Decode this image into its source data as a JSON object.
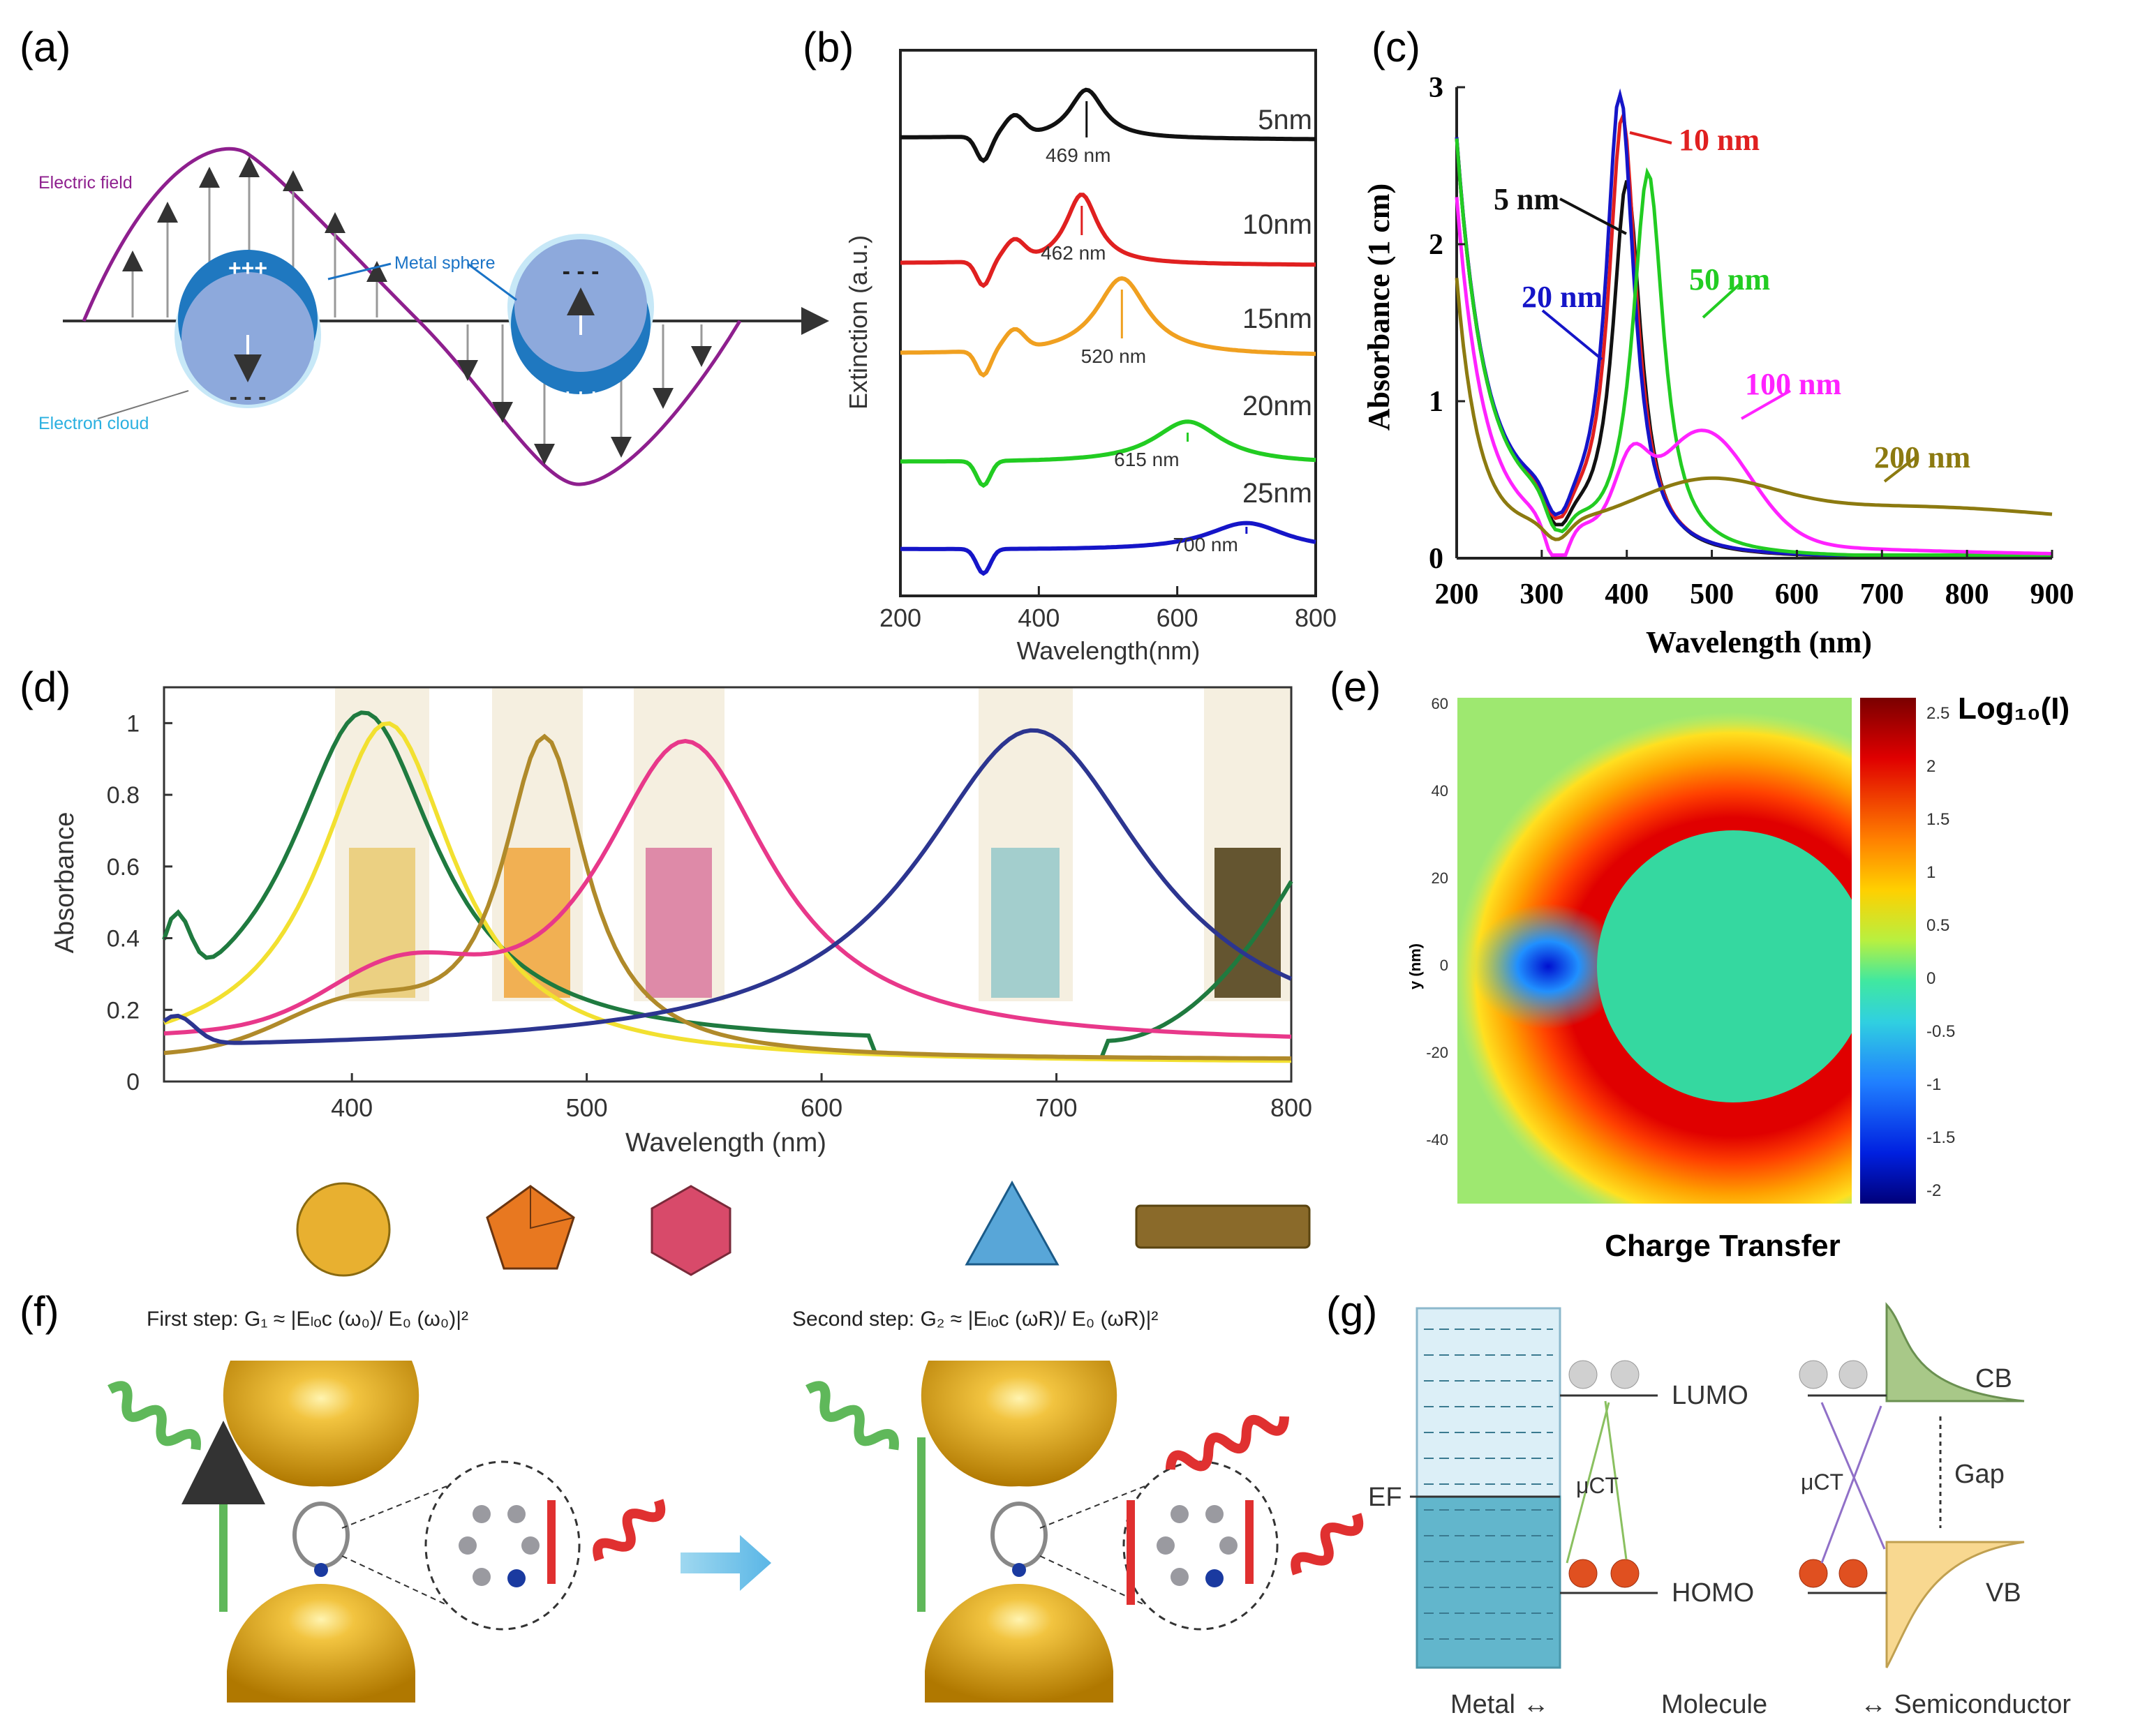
{
  "panel_labels": {
    "a": "(a)",
    "b": "(b)",
    "c": "(c)",
    "d": "(d)",
    "e": "(e)",
    "f": "(f)",
    "g": "(g)"
  },
  "panel_a": {
    "electric_field": "Electric field",
    "metal_sphere": "Metal sphere",
    "electron_cloud": "Electron cloud",
    "plus_sign": "+++",
    "minus_sign": "- - -"
  },
  "panel_f": {
    "first_step": "First step: G₁ ≈ |Eₗₒc (ω₀)/ E₀ (ω₀)|²",
    "second_step": "Second step: G₂ ≈ |Eₗₒc (ωR)/ E₀ (ωR)|²"
  },
  "panel_g": {
    "lumo": "LUMO",
    "homo": "HOMO",
    "cb": "CB",
    "vb": "VB",
    "gap": "Gap",
    "ef": "EF",
    "mu_left": "μCT",
    "mu_right": "μCT",
    "metal": "Metal ↔",
    "molecule": "Molecule",
    "semiconductor": "↔ Semiconductor"
  },
  "colors": {
    "black": "#111111",
    "red": "#e02020",
    "orange": "#f0a020",
    "green": "#22cc22",
    "blue": "#1515c8",
    "magenta": "#ff22ff",
    "olive": "#8c7a10",
    "d_green": "#1f7a3f",
    "d_yellow": "#f2e030",
    "d_tan": "#b08a2a",
    "d_pink": "#e8388a",
    "d_navy": "#2c3590"
  },
  "chart_data": [
    {
      "panel": "b",
      "type": "line",
      "xlabel": "Wavelength(nm)",
      "ylabel": "Extinction (a.u.)",
      "xlim": [
        200,
        800
      ],
      "xticks": [
        "200",
        "400",
        "600",
        "800"
      ],
      "series": [
        {
          "name": "5nm",
          "color": "#111111",
          "peak_label": "469 nm",
          "peak_x": 469
        },
        {
          "name": "10nm",
          "color": "#e02020",
          "peak_label": "462 nm",
          "peak_x": 462
        },
        {
          "name": "15nm",
          "color": "#f0a020",
          "peak_label": "520 nm",
          "peak_x": 520
        },
        {
          "name": "20nm",
          "color": "#22cc22",
          "peak_label": "615 nm",
          "peak_x": 615
        },
        {
          "name": "25nm",
          "color": "#1515c8",
          "peak_label": "700 nm",
          "peak_x": 700
        }
      ]
    },
    {
      "panel": "c",
      "type": "line",
      "xlabel": "Wavelength (nm)",
      "ylabel": "Absorbance (1 cm)",
      "xlim": [
        200,
        900
      ],
      "ylim": [
        0,
        3
      ],
      "xticks": [
        "200",
        "300",
        "400",
        "500",
        "600",
        "700",
        "800",
        "900"
      ],
      "yticks": [
        "0",
        "1",
        "2",
        "3"
      ],
      "series": [
        {
          "name": "5 nm",
          "color": "#111111",
          "peak_x": 400,
          "peak_y": 2.38
        },
        {
          "name": "10 nm",
          "color": "#e02020",
          "peak_x": 395,
          "peak_y": 2.8
        },
        {
          "name": "20 nm",
          "color": "#1515c8",
          "peak_x": 392,
          "peak_y": 2.95
        },
        {
          "name": "50 nm",
          "color": "#22cc22",
          "peak_x": 425,
          "peak_y": 2.45
        },
        {
          "name": "100 nm",
          "color": "#ff22ff",
          "peak_x": 490,
          "peak_y": 0.95
        },
        {
          "name": "200 nm",
          "color": "#8c7a10",
          "peak_x": 490,
          "peak_y": 0.43
        }
      ]
    },
    {
      "panel": "d",
      "type": "line",
      "xlabel": "Wavelength (nm)",
      "ylabel": "Absorbance",
      "xlim": [
        320,
        800
      ],
      "ylim": [
        0,
        1.1
      ],
      "xticks": [
        "400",
        "500",
        "600",
        "700",
        "800"
      ],
      "yticks": [
        "0",
        "0.2",
        "0.4",
        "0.6",
        "0.8",
        "1"
      ],
      "series": [
        {
          "color": "#1f7a3f",
          "peak_x": 405
        },
        {
          "color": "#f2e030",
          "peak_x": 415
        },
        {
          "color": "#b08a2a",
          "peak_x": 482
        },
        {
          "color": "#e8388a",
          "peak_x": 542
        },
        {
          "color": "#2c3590",
          "peak_x": 690
        }
      ]
    },
    {
      "panel": "e",
      "type": "heatmap",
      "title": "Charge Transfer",
      "ylabel": "y (nm)",
      "colorbar_label": "Log₁₀(I)",
      "yticks": [
        "60",
        "40",
        "20",
        "0",
        "-20",
        "-40"
      ],
      "colorbar_ticks": [
        "2.5",
        "2",
        "1.5",
        "1",
        "0.5",
        "0",
        "-0.5",
        "-1",
        "-1.5",
        "-2"
      ]
    }
  ]
}
